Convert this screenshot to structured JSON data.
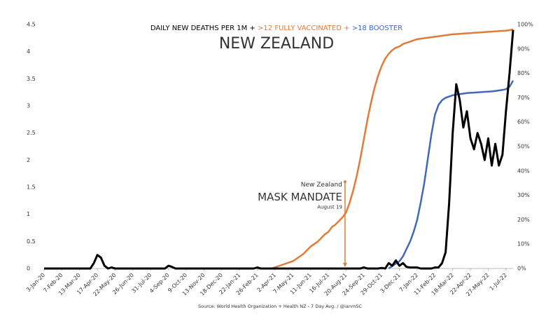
{
  "chart_data": {
    "type": "line",
    "subtitle": "NEW ZEALAND",
    "source": "Source: World Health Organization + Health NZ - 7 Day Avg. / @ianmSC",
    "categories": [
      "3-Jan-20",
      null,
      null,
      null,
      null,
      "7-Feb-20",
      null,
      null,
      null,
      null,
      "13-Mar-20",
      null,
      null,
      null,
      null,
      "17-Apr-20",
      null,
      null,
      null,
      null,
      "22-May-20",
      null,
      null,
      null,
      null,
      "26-Jun-20",
      null,
      null,
      null,
      null,
      "31-Jul-20",
      null,
      null,
      null,
      null,
      "4-Sep-20",
      null,
      null,
      null,
      null,
      "9-Oct-20",
      null,
      null,
      null,
      null,
      "13-Nov-20",
      null,
      null,
      null,
      null,
      "18-Dec-20",
      null,
      null,
      null,
      null,
      "22-Jan-21",
      null,
      null,
      null,
      null,
      "26-Feb-21",
      null,
      null,
      null,
      null,
      "2-Apr-21",
      null,
      null,
      null,
      null,
      "7-May-21",
      null,
      null,
      null,
      null,
      "11-Jun-21",
      null,
      null,
      null,
      null,
      "16-Jul-21",
      null,
      null,
      null,
      null,
      "20-Aug-21",
      null,
      null,
      null,
      null,
      "24-Sep-21",
      null,
      null,
      null,
      null,
      "29-Oct-21",
      null,
      null,
      null,
      null,
      "3-Dec-21",
      null,
      null,
      null,
      null,
      "7-Jan-22",
      null,
      null,
      null,
      null,
      "11-Feb-22",
      null,
      null,
      null,
      null,
      "18-Mar-22",
      null,
      null,
      null,
      null,
      "22-Apr-22",
      null,
      null,
      null,
      null,
      "27-May-22",
      null,
      null,
      null,
      null,
      "1-Jul-22",
      null,
      null
    ],
    "series": [
      {
        "name": "DAILY NEW DEATHS PER 1M +",
        "color": "#000000",
        "axis": "y",
        "values": [
          0,
          0,
          0,
          0,
          0,
          0,
          0,
          0,
          0,
          0,
          0,
          0,
          0,
          0,
          0.1,
          0.25,
          0.2,
          0.05,
          0,
          0.02,
          0,
          0,
          0,
          0,
          0,
          0,
          0,
          0,
          0,
          0,
          0,
          0,
          0,
          0,
          0,
          0.05,
          0.03,
          0,
          0,
          0,
          0,
          0,
          0,
          0,
          0,
          0,
          0,
          0,
          0,
          0,
          0,
          0,
          0,
          0,
          0,
          0,
          0,
          0,
          0,
          0,
          0.02,
          0,
          0,
          0,
          0,
          0,
          0,
          0,
          0,
          0,
          0,
          0,
          0,
          0,
          0,
          0,
          0,
          0,
          0,
          0,
          0,
          0,
          0,
          0,
          0,
          0,
          0,
          0,
          0,
          0,
          0.02,
          0,
          0,
          0,
          0,
          0.01,
          0,
          0.1,
          0.05,
          0.15,
          0.05,
          0.1,
          0.03,
          0.02,
          0.02,
          0.02,
          0,
          0,
          0,
          0,
          0.02,
          0.02,
          0.1,
          0.3,
          1.2,
          2.5,
          3.4,
          3.1,
          2.6,
          2.9,
          2.4,
          2.2,
          2.5,
          2.3,
          2.0,
          2.4,
          1.9,
          2.3,
          1.9,
          2.1,
          2.9,
          3.6,
          4.4
        ]
      },
      {
        "name": ">12 FULLY VACCINATED +",
        "color": "#e07b39",
        "axis": "y2",
        "values": [
          null,
          null,
          null,
          null,
          null,
          null,
          null,
          null,
          null,
          null,
          null,
          null,
          null,
          null,
          null,
          null,
          null,
          null,
          null,
          null,
          null,
          null,
          null,
          null,
          null,
          null,
          null,
          null,
          null,
          null,
          null,
          null,
          null,
          null,
          null,
          null,
          null,
          null,
          null,
          null,
          null,
          null,
          null,
          null,
          null,
          null,
          null,
          null,
          null,
          null,
          null,
          null,
          null,
          null,
          null,
          null,
          null,
          null,
          null,
          null,
          0,
          0,
          0,
          0,
          0,
          0.5,
          1,
          1.5,
          2,
          2.5,
          3,
          4,
          5,
          6,
          7.5,
          9,
          10,
          11,
          12.5,
          14,
          15,
          17,
          18,
          19.5,
          21,
          23,
          27,
          32,
          38,
          45,
          53,
          61,
          68,
          74,
          79,
          83,
          86,
          88,
          89.5,
          90.5,
          91,
          92,
          92.5,
          93,
          93.5,
          94,
          94.2,
          94.4,
          94.6,
          94.8,
          95,
          95.2,
          95.4,
          95.6,
          95.8,
          96,
          96.1,
          96.2,
          96.3,
          96.4,
          96.5,
          96.6,
          96.7,
          96.8,
          96.9,
          97,
          97.1,
          97.2,
          97.3,
          97.4,
          97.5,
          97.7,
          98
        ]
      },
      {
        "name": ">18 BOOSTER",
        "color": "#4169b8",
        "axis": "y2",
        "values": [
          null,
          null,
          null,
          null,
          null,
          null,
          null,
          null,
          null,
          null,
          null,
          null,
          null,
          null,
          null,
          null,
          null,
          null,
          null,
          null,
          null,
          null,
          null,
          null,
          null,
          null,
          null,
          null,
          null,
          null,
          null,
          null,
          null,
          null,
          null,
          null,
          null,
          null,
          null,
          null,
          null,
          null,
          null,
          null,
          null,
          null,
          null,
          null,
          null,
          null,
          null,
          null,
          null,
          null,
          null,
          null,
          null,
          null,
          null,
          null,
          null,
          null,
          null,
          null,
          null,
          null,
          null,
          null,
          null,
          null,
          null,
          null,
          null,
          null,
          null,
          null,
          null,
          null,
          null,
          null,
          null,
          null,
          null,
          null,
          null,
          null,
          null,
          null,
          null,
          null,
          null,
          null,
          null,
          null,
          null,
          null,
          null,
          0,
          1,
          2,
          3,
          5,
          8,
          11,
          15,
          20,
          27,
          35,
          45,
          55,
          63,
          67,
          69,
          70,
          70.5,
          71,
          71.3,
          71.5,
          71.7,
          71.9,
          72,
          72.1,
          72.2,
          72.3,
          72.4,
          72.5,
          72.6,
          72.8,
          73,
          73.2,
          73.5,
          74.5,
          77
        ]
      }
    ],
    "ylim": [
      0,
      4.5
    ],
    "yticks": [
      0,
      0.5,
      1,
      1.5,
      2,
      2.5,
      3,
      3.5,
      4,
      4.5
    ],
    "y2lim": [
      0,
      100
    ],
    "y2ticks": [
      {
        "value": 0,
        "label": "0%"
      },
      {
        "value": 10,
        "label": "10%"
      },
      {
        "value": 20,
        "label": "20%"
      },
      {
        "value": 30,
        "label": "30%"
      },
      {
        "value": 40,
        "label": "40%"
      },
      {
        "value": 50,
        "label": "50%"
      },
      {
        "value": 60,
        "label": "60%"
      },
      {
        "value": 70,
        "label": "70%"
      },
      {
        "value": 80,
        "label": "80%"
      },
      {
        "value": 90,
        "label": "90%"
      },
      {
        "value": 100,
        "label": "100%"
      }
    ],
    "y2_color": "#e07b39",
    "annotation": {
      "lines": [
        "New Zealand",
        "MASK MANDATE",
        "August 19"
      ],
      "x": 84.7,
      "y": 1.6,
      "color": "#e07b39"
    }
  }
}
